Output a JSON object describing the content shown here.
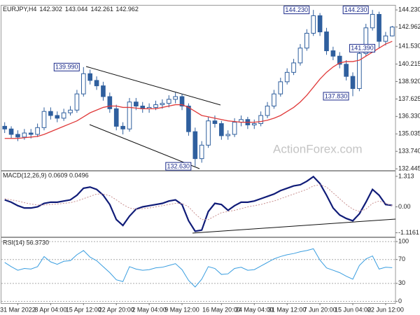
{
  "chart_data": [
    {
      "type": "candlestick",
      "title": "EURJPY,H4",
      "color": "#2f5f9e",
      "watermark": "ActionForex.com",
      "ylim": [
        132.35,
        144.55
      ],
      "yticks": [
        {
          "value": 144.23,
          "label": "144.230"
        },
        142.962,
        {
          "value": 141.53,
          "label": "141.530"
        },
        140.215,
        {
          "value": 138.92,
          "label": "138.920"
        },
        137.625,
        {
          "value": 136.33,
          "label": "136.330"
        },
        135.035,
        {
          "value": 133.74,
          "label": "133.740"
        },
        132.445
      ],
      "categories": [
        null,
        null,
        "31 Mar 2022",
        null,
        null,
        null,
        null,
        "8 Apr 04:00",
        null,
        null,
        null,
        null,
        "15 Apr 12:00",
        null,
        null,
        null,
        null,
        "22 Apr 20:00",
        null,
        null,
        null,
        null,
        "2 May 04:00",
        null,
        null,
        null,
        null,
        "9 May 12:00",
        null,
        null,
        null,
        null,
        null,
        "16 May 20:00",
        null,
        null,
        null,
        null,
        "24 May 04:00",
        null,
        null,
        null,
        null,
        "31 May 12:00",
        null,
        null,
        null,
        null,
        "7 Jun 20:00",
        null,
        null,
        null,
        null,
        "15 Jun 04:00",
        null,
        null,
        null,
        null,
        "22 Jun 12:00",
        null
      ],
      "candles": [
        [
          135.6,
          135.9,
          135.1,
          135.4
        ],
        [
          135.4,
          135.6,
          134.7,
          135.0
        ],
        [
          135.0,
          135.3,
          134.5,
          134.8
        ],
        [
          134.8,
          135.4,
          134.6,
          135.1
        ],
        [
          135.1,
          135.4,
          134.7,
          135.0
        ],
        [
          135.0,
          135.8,
          134.8,
          135.5
        ],
        [
          135.5,
          137.0,
          135.3,
          136.7
        ],
        [
          136.7,
          137.0,
          136.1,
          136.4
        ],
        [
          136.4,
          136.7,
          135.9,
          136.2
        ],
        [
          136.2,
          136.9,
          136.0,
          136.6
        ],
        [
          136.6,
          137.1,
          136.4,
          136.8
        ],
        [
          136.8,
          138.3,
          136.6,
          138.0
        ],
        [
          138.0,
          139.99,
          137.8,
          139.5
        ],
        [
          139.5,
          139.8,
          138.7,
          139.0
        ],
        [
          139.0,
          139.3,
          138.3,
          138.6
        ],
        [
          138.6,
          138.9,
          137.5,
          137.8
        ],
        [
          137.8,
          138.1,
          136.6,
          136.9
        ],
        [
          136.9,
          137.2,
          135.3,
          135.6
        ],
        [
          135.6,
          135.9,
          135.0,
          135.4
        ],
        [
          135.4,
          137.7,
          135.2,
          137.4
        ],
        [
          137.4,
          137.7,
          136.8,
          137.1
        ],
        [
          137.1,
          137.4,
          136.6,
          136.9
        ],
        [
          136.9,
          137.3,
          136.6,
          137.0
        ],
        [
          137.0,
          137.5,
          136.8,
          137.2
        ],
        [
          137.2,
          137.6,
          136.9,
          137.3
        ],
        [
          137.3,
          137.9,
          137.0,
          137.6
        ],
        [
          137.6,
          138.1,
          137.3,
          137.8
        ],
        [
          137.8,
          138.0,
          136.8,
          137.1
        ],
        [
          137.1,
          137.3,
          134.9,
          135.2
        ],
        [
          135.2,
          135.5,
          132.63,
          133.2
        ],
        [
          133.2,
          134.5,
          132.9,
          134.2
        ],
        [
          134.2,
          136.3,
          134.0,
          136.0
        ],
        [
          136.0,
          136.4,
          135.5,
          135.8
        ],
        [
          135.8,
          136.0,
          134.6,
          134.9
        ],
        [
          134.9,
          135.3,
          134.6,
          135.0
        ],
        [
          135.0,
          136.2,
          134.8,
          135.9
        ],
        [
          135.9,
          136.4,
          135.6,
          136.1
        ],
        [
          136.1,
          136.3,
          135.4,
          135.7
        ],
        [
          135.7,
          136.1,
          135.4,
          135.8
        ],
        [
          135.8,
          136.7,
          135.6,
          136.4
        ],
        [
          136.4,
          137.4,
          136.2,
          137.1
        ],
        [
          137.1,
          138.3,
          136.9,
          138.0
        ],
        [
          138.0,
          139.2,
          137.8,
          138.9
        ],
        [
          138.9,
          139.9,
          138.7,
          139.6
        ],
        [
          139.6,
          140.6,
          139.4,
          140.3
        ],
        [
          140.3,
          141.7,
          140.1,
          141.4
        ],
        [
          141.4,
          142.8,
          141.2,
          142.5
        ],
        [
          142.5,
          144.23,
          142.3,
          143.8
        ],
        [
          143.8,
          144.0,
          142.3,
          142.6
        ],
        [
          142.6,
          142.9,
          140.9,
          141.2
        ],
        [
          141.2,
          141.5,
          140.5,
          140.8
        ],
        [
          140.8,
          141.1,
          139.9,
          140.2
        ],
        [
          140.2,
          140.5,
          139.0,
          139.3
        ],
        [
          139.3,
          139.6,
          137.83,
          138.4
        ],
        [
          138.4,
          141.3,
          138.2,
          141.0
        ],
        [
          141.0,
          143.2,
          140.8,
          142.9
        ],
        [
          142.9,
          144.23,
          142.7,
          143.9
        ],
        [
          143.9,
          144.1,
          141.39,
          141.9
        ],
        [
          141.9,
          142.6,
          141.6,
          142.3
        ],
        [
          142.302,
          143.044,
          142.261,
          142.962
        ]
      ],
      "overlay": {
        "color": "#e03a3a",
        "values": [
          134.7,
          134.7,
          134.7,
          134.75,
          134.8,
          134.85,
          135.0,
          135.2,
          135.4,
          135.6,
          135.8,
          136.0,
          136.3,
          136.6,
          136.8,
          137.0,
          137.1,
          137.1,
          137.0,
          137.0,
          136.95,
          136.9,
          136.9,
          136.9,
          137.0,
          137.1,
          137.2,
          137.2,
          137.0,
          136.7,
          136.4,
          136.3,
          136.2,
          136.1,
          136.0,
          135.95,
          135.9,
          135.9,
          135.9,
          135.95,
          136.05,
          136.2,
          136.4,
          136.7,
          137.0,
          137.4,
          137.9,
          138.5,
          139.1,
          139.6,
          140.0,
          140.3,
          140.4,
          140.4,
          140.5,
          140.8,
          141.1,
          141.4,
          141.7,
          141.9
        ]
      },
      "annotations": [
        {
          "value": 139.99,
          "label": "139.990"
        },
        {
          "value": 132.63,
          "label": "132.630"
        },
        {
          "value": 144.23,
          "label": "144.230"
        },
        {
          "value": 137.83,
          "label": "137.830"
        },
        {
          "value": 144.23,
          "label": "144.230"
        },
        {
          "value": 141.39,
          "label": "141.390"
        }
      ]
    },
    {
      "type": "line",
      "title": "MACD(12,26,9) 0.0609 0.0496",
      "ylim": [
        -1.28,
        1.52
      ],
      "yticks": [
        1.313,
        {
          "value": 0,
          "label": "0.00"
        },
        -1.1161
      ],
      "series": [
        {
          "color": "#101c78",
          "values": [
            0.3,
            0.2,
            0.05,
            -0.05,
            -0.05,
            0,
            0.15,
            0.2,
            0.2,
            0.25,
            0.3,
            0.5,
            0.8,
            0.85,
            0.75,
            0.5,
            0.1,
            -0.55,
            -0.8,
            -0.4,
            -0.1,
            0,
            0.05,
            0.1,
            0.15,
            0.25,
            0.3,
            0.1,
            -0.6,
            -1.05,
            -1.0,
            -0.2,
            0.15,
            0.1,
            -0.15,
            0.05,
            0.2,
            0.2,
            0.25,
            0.35,
            0.45,
            0.55,
            0.7,
            0.8,
            0.9,
            0.95,
            1.1,
            1.3,
            1.0,
            0.5,
            -0.05,
            -0.35,
            -0.5,
            -0.6,
            -0.3,
            0.2,
            0.75,
            0.5,
            0.1,
            0.0609
          ]
        },
        {
          "color": "#c99090",
          "dash": true,
          "values": [
            0.35,
            0.3,
            0.25,
            0.18,
            0.12,
            0.08,
            0.08,
            0.1,
            0.12,
            0.15,
            0.18,
            0.25,
            0.35,
            0.45,
            0.55,
            0.55,
            0.48,
            0.3,
            0.1,
            -0.05,
            -0.1,
            -0.08,
            -0.05,
            0,
            0.05,
            0.1,
            0.15,
            0.15,
            0,
            -0.3,
            -0.55,
            -0.55,
            -0.4,
            -0.25,
            -0.2,
            -0.15,
            -0.08,
            0,
            0.05,
            0.1,
            0.18,
            0.25,
            0.35,
            0.45,
            0.55,
            0.65,
            0.75,
            0.9,
            0.95,
            0.85,
            0.6,
            0.35,
            0.1,
            -0.1,
            -0.2,
            -0.1,
            0.15,
            0.25,
            0.15,
            0.0496
          ]
        }
      ]
    },
    {
      "type": "line",
      "title": "RSI(14) 56.3730",
      "grid": true,
      "ylim": [
        -3,
        106
      ],
      "yticks": [
        100,
        70,
        30,
        0
      ],
      "series": [
        {
          "color": "#3a9ee0",
          "values": [
            65,
            58,
            52,
            55,
            54,
            58,
            75,
            66,
            62,
            67,
            68,
            78,
            85,
            74,
            68,
            58,
            48,
            36,
            33,
            58,
            54,
            52,
            53,
            56,
            57,
            60,
            63,
            53,
            35,
            24,
            37,
            58,
            55,
            45,
            46,
            55,
            57,
            52,
            53,
            59,
            65,
            71,
            75,
            78,
            80,
            83,
            85,
            88,
            69,
            56,
            52,
            48,
            42,
            37,
            60,
            71,
            76,
            54,
            57,
            56.373
          ]
        }
      ]
    }
  ]
}
